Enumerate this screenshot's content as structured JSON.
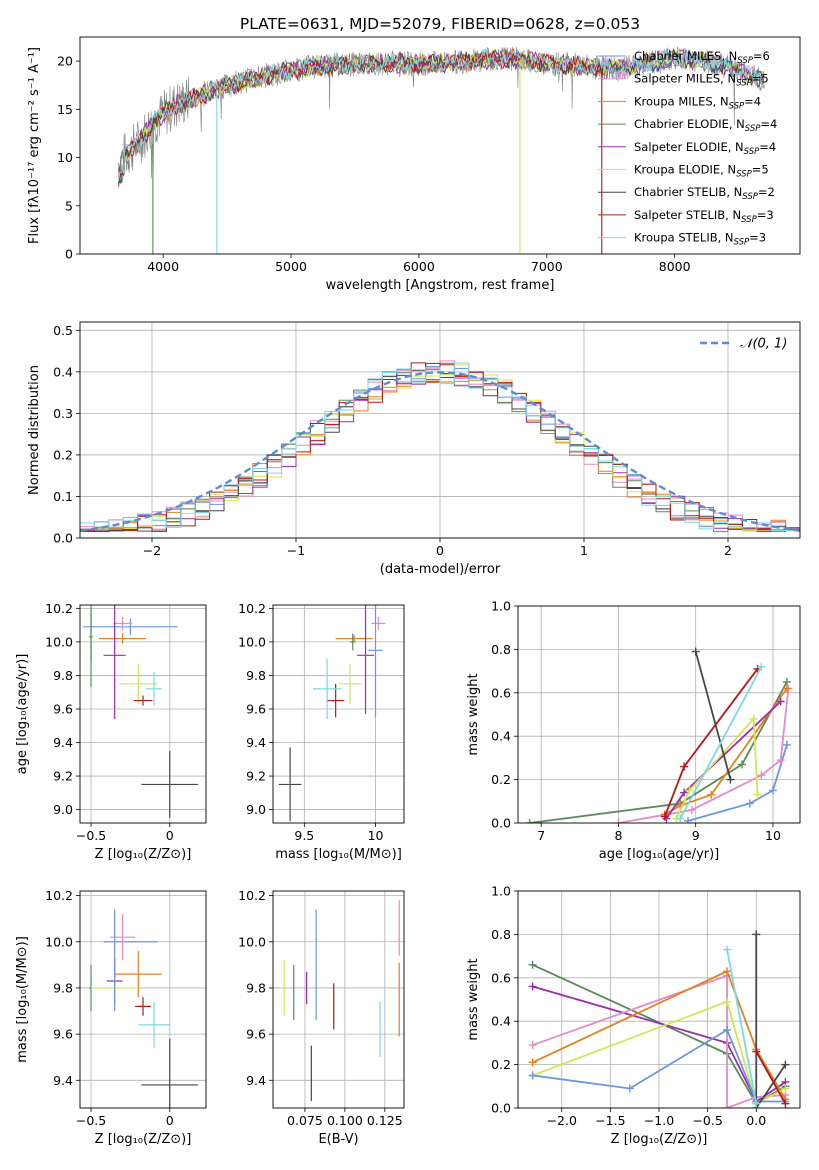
{
  "title": "PLATE=0631, MJD=52079, FIBERID=0628, z=0.053",
  "colors": {
    "chabrier_miles": "#6e95e0",
    "salpeter_miles": "#e58bc8",
    "kroupa_miles": "#e5801e",
    "chabrier_elodie": "#5a8a5a",
    "salpeter_elodie": "#9d2ea9",
    "kroupa_elodie": "#d2e655",
    "chabrier_stelib": "#474747",
    "salpeter_stelib": "#b3191b",
    "kroupa_stelib": "#7ad9e3",
    "normal": "#5b8ed6",
    "grid": "#b0b0b0"
  },
  "chart_data": [
    {
      "id": "spectrum",
      "type": "line",
      "xlabel": "wavelength [Angstrom, rest frame]",
      "ylabel": "Flux [fλ10⁻¹⁷ erg cm⁻² s⁻¹ A⁻¹]",
      "xlim": [
        3350,
        8980
      ],
      "ylim": [
        0,
        22.5
      ],
      "xticks": [
        4000,
        5000,
        6000,
        7000,
        8000
      ],
      "yticks": [
        0,
        5,
        10,
        15,
        20
      ],
      "series": [
        {
          "name": "Chabrier MILES, N",
          "sub": "SSP",
          "suffix": "=6",
          "color": "#6e95e0",
          "nssp": 6
        },
        {
          "name": "Salpeter MILES, N",
          "sub": "SSP",
          "suffix": "=5",
          "color": "#e58bc8",
          "nssp": 5
        },
        {
          "name": "Kroupa MILES, N",
          "sub": "SSP",
          "suffix": "=4",
          "color": "#e5801e",
          "nssp": 4
        },
        {
          "name": "Chabrier ELODIE, N",
          "sub": "SSP",
          "suffix": "=4",
          "color": "#5a8a5a",
          "nssp": 4
        },
        {
          "name": "Salpeter ELODIE, N",
          "sub": "SSP",
          "suffix": "=4",
          "color": "#9d2ea9",
          "nssp": 4
        },
        {
          "name": "Kroupa ELODIE, N",
          "sub": "SSP",
          "suffix": "=5",
          "color": "#d2e655",
          "nssp": 5
        },
        {
          "name": "Chabrier STELIB, N",
          "sub": "SSP",
          "suffix": "=2",
          "color": "#474747",
          "nssp": 2
        },
        {
          "name": "Salpeter STELIB, N",
          "sub": "SSP",
          "suffix": "=3",
          "color": "#b3191b",
          "nssp": 3
        },
        {
          "name": "Kroupa STELIB, N",
          "sub": "SSP",
          "suffix": "=3",
          "color": "#7ad9e3",
          "nssp": 3
        }
      ],
      "data_continuum": [
        [
          3650,
          9.5
        ],
        [
          3800,
          11.5
        ],
        [
          3950,
          14
        ],
        [
          4100,
          15.5
        ],
        [
          4300,
          16.5
        ],
        [
          4500,
          17.5
        ],
        [
          4800,
          18.5
        ],
        [
          5000,
          19.0
        ],
        [
          5200,
          19.5
        ],
        [
          5500,
          19.7
        ],
        [
          5800,
          19.8
        ],
        [
          6000,
          19.7
        ],
        [
          6300,
          19.9
        ],
        [
          6500,
          20.2
        ],
        [
          6700,
          20.3
        ],
        [
          7000,
          19.8
        ],
        [
          7200,
          19.6
        ],
        [
          7400,
          19.3
        ],
        [
          7600,
          19.2
        ],
        [
          7800,
          19.8
        ],
        [
          8000,
          20.3
        ],
        [
          8200,
          20.0
        ],
        [
          8400,
          19.5
        ],
        [
          8600,
          18.5
        ],
        [
          8700,
          18.0
        ]
      ]
    },
    {
      "id": "residuals",
      "type": "histogram",
      "xlabel": "(data-model)/error",
      "ylabel": "Normed distribution",
      "xlim": [
        -2.5,
        2.5
      ],
      "ylim": [
        0,
        0.52
      ],
      "xticks": [
        -2,
        -1,
        0,
        1,
        2
      ],
      "yticks": [
        0.0,
        0.1,
        0.2,
        0.3,
        0.4,
        0.5
      ],
      "legend": "𝒩(0, 1)",
      "bin_width": 0.1
    },
    {
      "id": "age_vs_Z",
      "type": "scatter",
      "xlabel": "Z [log₁₀(Z/Z⊙)]",
      "ylabel": "age  [log₁₀(age/yr)]",
      "xlim": [
        -0.57,
        0.23
      ],
      "ylim": [
        8.92,
        10.22
      ],
      "xticks": [
        -0.5,
        0.0
      ],
      "yticks": [
        9.0,
        9.2,
        9.4,
        9.6,
        9.8,
        10.0,
        10.2
      ],
      "points": [
        {
          "x": -0.25,
          "y": 10.09,
          "xerr": 0.3,
          "yerr": 0.05,
          "color": "#6e95e0"
        },
        {
          "x": -0.3,
          "y": 10.11,
          "xerr": 0.06,
          "yerr": 0.04,
          "color": "#e58bc8"
        },
        {
          "x": -0.3,
          "y": 10.02,
          "xerr": 0.15,
          "yerr": 0.03,
          "color": "#e5801e"
        },
        {
          "x": -0.5,
          "y": 10.03,
          "xerr": 0.01,
          "yerr": 0.14,
          "color": "#5a8a5a"
        },
        {
          "x": -0.35,
          "y": 9.92,
          "xerr": 0.07,
          "yerr": 0.38,
          "color": "#9d2ea9"
        },
        {
          "x": -0.2,
          "y": 9.75,
          "xerr": 0.12,
          "yerr": 0.12,
          "color": "#d2e655"
        },
        {
          "x": 0.0,
          "y": 9.15,
          "xerr": 0.18,
          "yerr": 0.2,
          "color": "#474747"
        },
        {
          "x": -0.17,
          "y": 9.65,
          "xerr": 0.06,
          "yerr": 0.03,
          "color": "#b3191b"
        },
        {
          "x": -0.1,
          "y": 9.72,
          "xerr": 0.05,
          "yerr": 0.1,
          "color": "#7ad9e3"
        },
        {
          "x": -0.5,
          "y": 10.03,
          "xerr": 0.01,
          "yerr": 0.3,
          "color": "#5a8a5a"
        },
        {
          "x": 0.0,
          "y": 9.9,
          "xerr": 0.0,
          "yerr": 0.0,
          "color": "#474747"
        }
      ]
    },
    {
      "id": "age_vs_mass",
      "type": "scatter",
      "xlabel": "mass [log₁₀(M/M⊙)]",
      "ylabel": "",
      "xlim": [
        9.28,
        10.2
      ],
      "ylim": [
        8.92,
        10.22
      ],
      "xticks": [
        9.5,
        10.0
      ],
      "yticks": [
        9.0,
        9.2,
        9.4,
        9.6,
        9.8,
        10.0,
        10.2
      ],
      "points": [
        {
          "x": 10.02,
          "y": 10.11,
          "xerr": 0.05,
          "yerr": 0.04,
          "color": "#e58bc8"
        },
        {
          "x": 10.0,
          "y": 9.95,
          "xerr": 0.05,
          "yerr": 0.4,
          "color": "#6e95e0"
        },
        {
          "x": 9.85,
          "y": 10.02,
          "xerr": 0.13,
          "yerr": 0.02,
          "color": "#e5801e"
        },
        {
          "x": 9.84,
          "y": 10.0,
          "xerr": 0.02,
          "yerr": 0.05,
          "color": "#5a8a5a"
        },
        {
          "x": 9.93,
          "y": 9.92,
          "xerr": 0.06,
          "yerr": 0.35,
          "color": "#9d2ea9"
        },
        {
          "x": 9.82,
          "y": 9.75,
          "xerr": 0.08,
          "yerr": 0.12,
          "color": "#d2e655"
        },
        {
          "x": 9.4,
          "y": 9.15,
          "xerr": 0.08,
          "yerr": 0.22,
          "color": "#474747"
        },
        {
          "x": 9.72,
          "y": 9.65,
          "xerr": 0.06,
          "yerr": 0.1,
          "color": "#b3191b"
        },
        {
          "x": 9.66,
          "y": 9.72,
          "xerr": 0.1,
          "yerr": 0.18,
          "color": "#7ad9e3"
        }
      ]
    },
    {
      "id": "weight_vs_age",
      "type": "line",
      "xlabel": "age  [log₁₀(age/yr)]",
      "ylabel": "mass weight",
      "xlim": [
        6.7,
        10.35
      ],
      "ylim": [
        0,
        1
      ],
      "xticks": [
        7,
        8,
        9,
        10
      ],
      "yticks": [
        0.0,
        0.2,
        0.4,
        0.6,
        0.8,
        1.0
      ],
      "series": [
        {
          "color": "#5a8a5a",
          "points": [
            [
              6.85,
              0.0
            ],
            [
              8.8,
              0.09
            ],
            [
              9.6,
              0.27
            ],
            [
              10.18,
              0.65
            ]
          ]
        },
        {
          "color": "#6e95e0",
          "points": [
            [
              8.9,
              0.01
            ],
            [
              9.7,
              0.09
            ],
            [
              10.0,
              0.15
            ],
            [
              10.18,
              0.36
            ]
          ]
        },
        {
          "color": "#e58bc8",
          "points": [
            [
              8.0,
              0.0
            ],
            [
              8.95,
              0.06
            ],
            [
              9.85,
              0.22
            ],
            [
              10.1,
              0.29
            ],
            [
              10.2,
              0.62
            ]
          ]
        },
        {
          "color": "#e5801e",
          "points": [
            [
              8.6,
              0.04
            ],
            [
              8.8,
              0.08
            ],
            [
              9.2,
              0.13
            ],
            [
              10.18,
              0.62
            ]
          ]
        },
        {
          "color": "#9d2ea9",
          "points": [
            [
              8.62,
              0.02
            ],
            [
              8.85,
              0.14
            ],
            [
              10.1,
              0.56
            ]
          ]
        },
        {
          "color": "#d2e655",
          "points": [
            [
              8.75,
              0.02
            ],
            [
              8.92,
              0.15
            ],
            [
              9.75,
              0.48
            ],
            [
              9.8,
              0.13
            ]
          ]
        },
        {
          "color": "#474747",
          "points": [
            [
              9.0,
              0.79
            ],
            [
              9.45,
              0.2
            ]
          ]
        },
        {
          "color": "#b3191b",
          "points": [
            [
              8.6,
              0.03
            ],
            [
              8.85,
              0.26
            ],
            [
              9.8,
              0.71
            ]
          ]
        },
        {
          "color": "#7ad9e3",
          "points": [
            [
              8.8,
              0.02
            ],
            [
              9.85,
              0.72
            ]
          ]
        }
      ]
    },
    {
      "id": "mass_vs_Z",
      "type": "scatter",
      "xlabel": "Z [log₁₀(Z/Z⊙)]",
      "ylabel": "mass [log₁₀(M/M⊙)]",
      "xlim": [
        -0.57,
        0.23
      ],
      "ylim": [
        9.28,
        10.22
      ],
      "xticks": [
        -0.5,
        0.0
      ],
      "yticks": [
        9.4,
        9.6,
        9.8,
        10.0,
        10.2
      ],
      "points": [
        {
          "x": -0.25,
          "y": 10.0,
          "xerr": 0.17,
          "yerr": 0.0,
          "color": "#6e95e0"
        },
        {
          "x": -0.3,
          "y": 10.02,
          "xerr": 0.08,
          "yerr": 0.1,
          "color": "#e58bc8"
        },
        {
          "x": -0.2,
          "y": 9.86,
          "xerr": 0.15,
          "yerr": 0.1,
          "color": "#e5801e"
        },
        {
          "x": -0.5,
          "y": 9.8,
          "xerr": 0.01,
          "yerr": 0.1,
          "color": "#5a8a5a"
        },
        {
          "x": -0.35,
          "y": 9.83,
          "xerr": 0.05,
          "yerr": 0.1,
          "color": "#9d2ea9"
        },
        {
          "x": -0.35,
          "y": 9.8,
          "xerr": 0.15,
          "yerr": 0.04,
          "color": "#d2e655"
        },
        {
          "x": 0.0,
          "y": 9.38,
          "xerr": 0.18,
          "yerr": 0.2,
          "color": "#474747"
        },
        {
          "x": -0.17,
          "y": 9.72,
          "xerr": 0.05,
          "yerr": 0.04,
          "color": "#b3191b"
        },
        {
          "x": -0.1,
          "y": 9.64,
          "xerr": 0.1,
          "yerr": 0.1,
          "color": "#7ad9e3"
        },
        {
          "x": -0.35,
          "y": 9.92,
          "xerr": 0.0,
          "yerr": 0.22,
          "color": "#6e95e0"
        }
      ]
    },
    {
      "id": "ebv",
      "type": "errorbar",
      "xlabel": "E(B-V)",
      "ylabel": "",
      "xlim": [
        0.055,
        0.137
      ],
      "ylim": [
        9.28,
        10.22
      ],
      "xticks": [
        0.075,
        0.1,
        0.125
      ],
      "xticklabels": [
        "0.075",
        "0.100",
        "0.125"
      ],
      "yticks": [
        9.4,
        9.6,
        9.8,
        10.0,
        10.2
      ],
      "points": [
        {
          "x": 0.062,
          "y": 9.8,
          "yerr": 0.12,
          "color": "#d2e655"
        },
        {
          "x": 0.068,
          "y": 9.78,
          "yerr": 0.12,
          "color": "#5a8a5a"
        },
        {
          "x": 0.076,
          "y": 9.8,
          "yerr": 0.07,
          "color": "#9d2ea9"
        },
        {
          "x": 0.079,
          "y": 9.43,
          "yerr": 0.12,
          "color": "#474747"
        },
        {
          "x": 0.082,
          "y": 9.9,
          "yerr": 0.24,
          "color": "#6e95e0"
        },
        {
          "x": 0.093,
          "y": 9.72,
          "yerr": 0.1,
          "color": "#b3191b"
        },
        {
          "x": 0.122,
          "y": 9.62,
          "yerr": 0.12,
          "color": "#7ad9e3"
        },
        {
          "x": 0.134,
          "y": 9.75,
          "yerr": 0.16,
          "color": "#e5801e"
        },
        {
          "x": 0.134,
          "y": 10.06,
          "yerr": 0.12,
          "color": "#e58bc8"
        }
      ]
    },
    {
      "id": "weight_vs_Z",
      "type": "line",
      "xlabel": "Z [log₁₀(Z/Z⊙)]",
      "ylabel": "mass weight",
      "xlim": [
        -2.45,
        0.45
      ],
      "ylim": [
        0,
        1
      ],
      "xticks": [
        -2.0,
        -1.5,
        -1.0,
        -0.5,
        0.0
      ],
      "yticks": [
        0.0,
        0.2,
        0.4,
        0.6,
        0.8,
        1.0
      ],
      "series": [
        {
          "color": "#5a8a5a",
          "points": [
            [
              -2.3,
              0.66
            ],
            [
              -0.3,
              0.25
            ],
            [
              0.0,
              0.02
            ],
            [
              0.3,
              0.1
            ]
          ]
        },
        {
          "color": "#9d2ea9",
          "points": [
            [
              -2.3,
              0.56
            ],
            [
              -0.3,
              0.3
            ],
            [
              0.0,
              0.03
            ],
            [
              0.3,
              0.12
            ]
          ]
        },
        {
          "color": "#e58bc8",
          "points": [
            [
              -2.3,
              0.29
            ],
            [
              -0.3,
              0.61
            ],
            [
              -0.3,
              0.0
            ],
            [
              0.0,
              0.05
            ],
            [
              0.3,
              0.06
            ]
          ]
        },
        {
          "color": "#e5801e",
          "points": [
            [
              -2.3,
              0.21
            ],
            [
              -0.3,
              0.63
            ],
            [
              0.0,
              0.27
            ],
            [
              0.3,
              0.04
            ]
          ]
        },
        {
          "color": "#d2e655",
          "points": [
            [
              -2.3,
              0.15
            ],
            [
              -0.3,
              0.49
            ],
            [
              0.0,
              0.02
            ],
            [
              0.3,
              0.09
            ]
          ]
        },
        {
          "color": "#6e95e0",
          "points": [
            [
              -2.3,
              0.15
            ],
            [
              -1.3,
              0.09
            ],
            [
              -0.3,
              0.36
            ],
            [
              0.0,
              0.03
            ],
            [
              0.3,
              0.03
            ]
          ]
        },
        {
          "color": "#474747",
          "points": [
            [
              0.0,
              0.8
            ],
            [
              0.0,
              0.0
            ],
            [
              0.3,
              0.2
            ]
          ]
        },
        {
          "color": "#b3191b",
          "points": [
            [
              0.0,
              0.26
            ],
            [
              0.3,
              0.02
            ]
          ]
        },
        {
          "color": "#7ad9e3",
          "points": [
            [
              -0.3,
              0.73
            ],
            [
              0.0,
              0.02
            ]
          ]
        }
      ]
    }
  ]
}
